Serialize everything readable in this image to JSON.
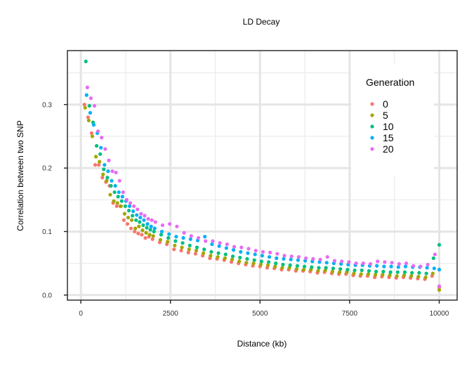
{
  "chart_data": {
    "type": "scatter",
    "title": "LD Decay",
    "xlabel": "Distance (kb)",
    "ylabel": "Correlation between two SNP",
    "xlim": [
      -375,
      10500
    ],
    "ylim": [
      -0.008,
      0.385
    ],
    "x_ticks": [
      0,
      2500,
      5000,
      7500,
      10000
    ],
    "x_tick_labels": [
      "0",
      "2500",
      "5000",
      "7500",
      "10000"
    ],
    "y_ticks": [
      0.0,
      0.1,
      0.2,
      0.3
    ],
    "y_tick_labels": [
      "0.0",
      "0.1",
      "0.2",
      "0.3"
    ],
    "grid": true,
    "legend": {
      "title": "Generation",
      "position": "top-right"
    },
    "series": [
      {
        "name": "0",
        "color": "#F8766D",
        "x": [
          100,
          200,
          300,
          400,
          500,
          600,
          700,
          800,
          900,
          1000,
          1100,
          1200,
          1300,
          1400,
          1500,
          1600,
          1700,
          1800,
          1900,
          2000,
          2200,
          2400,
          2600,
          2800,
          3000,
          3200,
          3400,
          3600,
          3800,
          4000,
          4200,
          4400,
          4600,
          4800,
          5000,
          5200,
          5400,
          5600,
          5800,
          6000,
          6200,
          6400,
          6600,
          6800,
          7000,
          7200,
          7400,
          7600,
          7800,
          8000,
          8200,
          8400,
          8600,
          8800,
          9000,
          9200,
          9400,
          9600,
          9800,
          10000
        ],
        "y": [
          0.3,
          0.28,
          0.255,
          0.205,
          0.205,
          0.185,
          0.178,
          0.172,
          0.145,
          0.14,
          0.14,
          0.118,
          0.112,
          0.105,
          0.1,
          0.097,
          0.095,
          0.09,
          0.092,
          0.088,
          0.083,
          0.08,
          0.072,
          0.07,
          0.067,
          0.065,
          0.062,
          0.058,
          0.057,
          0.055,
          0.052,
          0.05,
          0.048,
          0.046,
          0.045,
          0.043,
          0.042,
          0.04,
          0.04,
          0.038,
          0.038,
          0.037,
          0.035,
          0.036,
          0.034,
          0.033,
          0.033,
          0.031,
          0.03,
          0.03,
          0.028,
          0.029,
          0.028,
          0.027,
          0.028,
          0.027,
          0.026,
          0.025,
          0.03,
          0.012
        ]
      },
      {
        "name": "5",
        "color": "#A3A500",
        "x": [
          120,
          220,
          320,
          420,
          520,
          620,
          720,
          820,
          920,
          1020,
          1120,
          1220,
          1320,
          1420,
          1520,
          1620,
          1720,
          1820,
          1920,
          2020,
          2220,
          2420,
          2620,
          2820,
          3020,
          3220,
          3420,
          3620,
          3820,
          4020,
          4220,
          4420,
          4620,
          4820,
          5020,
          5220,
          5420,
          5620,
          5820,
          6020,
          6220,
          6420,
          6620,
          6820,
          7020,
          7220,
          7420,
          7620,
          7820,
          8020,
          8220,
          8420,
          8620,
          8820,
          9020,
          9220,
          9420,
          9620,
          9820,
          10000
        ],
        "y": [
          0.295,
          0.275,
          0.25,
          0.218,
          0.21,
          0.19,
          0.18,
          0.158,
          0.148,
          0.145,
          0.14,
          0.128,
          0.122,
          0.118,
          0.105,
          0.108,
          0.102,
          0.098,
          0.095,
          0.093,
          0.087,
          0.084,
          0.078,
          0.075,
          0.072,
          0.07,
          0.066,
          0.062,
          0.06,
          0.058,
          0.056,
          0.053,
          0.051,
          0.05,
          0.048,
          0.047,
          0.045,
          0.043,
          0.043,
          0.041,
          0.04,
          0.04,
          0.038,
          0.039,
          0.037,
          0.036,
          0.036,
          0.034,
          0.033,
          0.033,
          0.032,
          0.032,
          0.031,
          0.03,
          0.031,
          0.03,
          0.029,
          0.028,
          0.034,
          0.008
        ]
      },
      {
        "name": "10",
        "color": "#00BF7D",
        "x": [
          140,
          240,
          340,
          440,
          540,
          640,
          740,
          840,
          940,
          1040,
          1140,
          1240,
          1340,
          1440,
          1540,
          1640,
          1740,
          1840,
          1940,
          2040,
          2240,
          2440,
          2640,
          2840,
          3040,
          3240,
          3440,
          3640,
          3840,
          4040,
          4240,
          4440,
          4640,
          4840,
          5040,
          5240,
          5440,
          5640,
          5840,
          6040,
          6240,
          6440,
          6640,
          6840,
          7040,
          7240,
          7440,
          7640,
          7840,
          8040,
          8240,
          8440,
          8640,
          8840,
          9040,
          9240,
          9440,
          9640,
          9840,
          10000
        ],
        "y": [
          0.368,
          0.298,
          0.272,
          0.235,
          0.222,
          0.198,
          0.185,
          0.172,
          0.162,
          0.155,
          0.148,
          0.14,
          0.133,
          0.125,
          0.118,
          0.115,
          0.11,
          0.106,
          0.103,
          0.1,
          0.095,
          0.09,
          0.085,
          0.082,
          0.078,
          0.075,
          0.072,
          0.068,
          0.066,
          0.064,
          0.061,
          0.059,
          0.057,
          0.055,
          0.053,
          0.052,
          0.05,
          0.048,
          0.047,
          0.046,
          0.045,
          0.044,
          0.043,
          0.043,
          0.042,
          0.041,
          0.04,
          0.039,
          0.039,
          0.038,
          0.037,
          0.037,
          0.036,
          0.036,
          0.036,
          0.035,
          0.035,
          0.034,
          0.058,
          0.079
        ]
      },
      {
        "name": "15",
        "color": "#00B0F6",
        "x": [
          160,
          260,
          360,
          460,
          560,
          660,
          760,
          860,
          960,
          1060,
          1160,
          1260,
          1360,
          1460,
          1560,
          1660,
          1760,
          1860,
          1960,
          2060,
          2260,
          2460,
          2660,
          2860,
          3060,
          3260,
          3460,
          3660,
          3860,
          4060,
          4260,
          4460,
          4660,
          4860,
          5060,
          5260,
          5460,
          5660,
          5860,
          6060,
          6260,
          6460,
          6660,
          6860,
          7060,
          7260,
          7460,
          7660,
          7860,
          8060,
          8260,
          8460,
          8660,
          8860,
          9060,
          9260,
          9460,
          9660,
          9860,
          10000
        ],
        "y": [
          0.315,
          0.287,
          0.268,
          0.255,
          0.232,
          0.205,
          0.195,
          0.18,
          0.172,
          0.162,
          0.155,
          0.148,
          0.14,
          0.132,
          0.126,
          0.122,
          0.118,
          0.112,
          0.108,
          0.105,
          0.1,
          0.096,
          0.092,
          0.09,
          0.088,
          0.086,
          0.092,
          0.08,
          0.077,
          0.074,
          0.071,
          0.068,
          0.066,
          0.064,
          0.062,
          0.06,
          0.058,
          0.057,
          0.056,
          0.055,
          0.054,
          0.053,
          0.052,
          0.051,
          0.05,
          0.049,
          0.048,
          0.047,
          0.047,
          0.046,
          0.046,
          0.045,
          0.045,
          0.044,
          0.045,
          0.044,
          0.044,
          0.043,
          0.042,
          0.04
        ]
      },
      {
        "name": "20",
        "color": "#E76BF3",
        "x": [
          180,
          280,
          380,
          480,
          580,
          680,
          780,
          880,
          980,
          1080,
          1180,
          1280,
          1380,
          1480,
          1580,
          1680,
          1780,
          1880,
          1980,
          2080,
          2280,
          2480,
          2680,
          2880,
          3080,
          3280,
          3480,
          3680,
          3880,
          4080,
          4280,
          4480,
          4680,
          4880,
          5080,
          5280,
          5480,
          5680,
          5880,
          6080,
          6280,
          6480,
          6680,
          6880,
          7080,
          7280,
          7480,
          7680,
          7880,
          8080,
          8280,
          8480,
          8680,
          8880,
          9080,
          9280,
          9480,
          9680,
          9880,
          10000
        ],
        "y": [
          0.327,
          0.31,
          0.298,
          0.258,
          0.248,
          0.23,
          0.212,
          0.195,
          0.193,
          0.18,
          0.162,
          0.15,
          0.145,
          0.14,
          0.135,
          0.128,
          0.125,
          0.12,
          0.118,
          0.115,
          0.11,
          0.112,
          0.108,
          0.098,
          0.093,
          0.09,
          0.085,
          0.085,
          0.082,
          0.08,
          0.076,
          0.075,
          0.073,
          0.07,
          0.068,
          0.067,
          0.065,
          0.062,
          0.061,
          0.06,
          0.058,
          0.057,
          0.056,
          0.06,
          0.054,
          0.053,
          0.052,
          0.05,
          0.05,
          0.049,
          0.053,
          0.052,
          0.051,
          0.049,
          0.05,
          0.046,
          0.045,
          0.048,
          0.064,
          0.014
        ]
      }
    ]
  }
}
